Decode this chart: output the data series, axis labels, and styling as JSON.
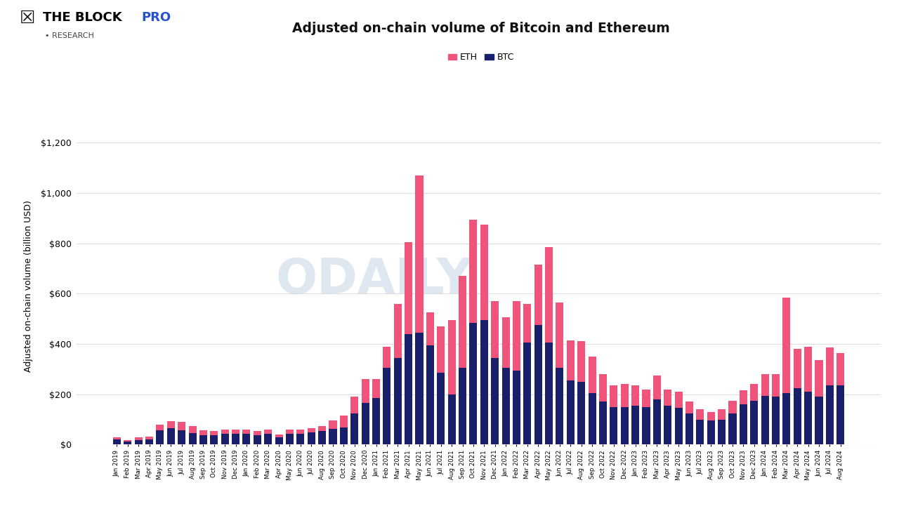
{
  "title": "Adjusted on-chain volume of Bitcoin and Ethereum",
  "ylabel": "Adjusted on-chain volume (billion USD)",
  "eth_color": "#F0547A",
  "btc_color": "#1A1F6B",
  "background_color": "#FFFFFF",
  "grid_color": "#DDDDDD",
  "ylim": [
    0,
    1260
  ],
  "yticks": [
    0,
    200,
    400,
    600,
    800,
    1000,
    1200
  ],
  "categories": [
    "Jan 2019",
    "Feb 2019",
    "Mar 2019",
    "Apr 2019",
    "May 2019",
    "Jun 2019",
    "Jul 2019",
    "Aug 2019",
    "Sep 2019",
    "Oct 2019",
    "Nov 2019",
    "Dec 2019",
    "Jan 2020",
    "Feb 2020",
    "Mar 2020",
    "Apr 2020",
    "May 2020",
    "Jun 2020",
    "Jul 2020",
    "Aug 2020",
    "Sep 2020",
    "Oct 2020",
    "Nov 2020",
    "Dec 2020",
    "Jan 2021",
    "Feb 2021",
    "Mar 2021",
    "Apr 2021",
    "May 2021",
    "Jun 2021",
    "Jul 2021",
    "Aug 2021",
    "Sep 2021",
    "Oct 2021",
    "Nov 2021",
    "Dec 2021",
    "Jan 2022",
    "Feb 2022",
    "Mar 2022",
    "Apr 2022",
    "May 2022",
    "Jun 2022",
    "Jul 2022",
    "Aug 2022",
    "Sep 2022",
    "Oct 2022",
    "Nov 2022",
    "Dec 2022",
    "Jan 2023",
    "Feb 2023",
    "Mar 2023",
    "Apr 2023",
    "May 2023",
    "Jun 2023",
    "Jul 2023",
    "Aug 2023",
    "Sep 2023",
    "Oct 2023",
    "Nov 2023",
    "Dec 2023",
    "Jan 2024",
    "Feb 2024",
    "Mar 2024",
    "Apr 2024",
    "May 2024",
    "Jun 2024",
    "Jul 2024",
    "Aug 2024"
  ],
  "btc_values": [
    20,
    12,
    18,
    20,
    58,
    65,
    58,
    45,
    38,
    38,
    43,
    43,
    43,
    38,
    43,
    28,
    43,
    43,
    48,
    53,
    63,
    68,
    125,
    165,
    185,
    305,
    345,
    440,
    445,
    395,
    285,
    200,
    305,
    485,
    495,
    345,
    305,
    295,
    405,
    475,
    405,
    305,
    255,
    250,
    205,
    170,
    150,
    150,
    155,
    150,
    180,
    155,
    145,
    125,
    100,
    95,
    100,
    125,
    160,
    175,
    195,
    190,
    205,
    225,
    210,
    190,
    235,
    235
  ],
  "eth_values": [
    10,
    7,
    10,
    12,
    22,
    28,
    33,
    28,
    18,
    16,
    16,
    16,
    18,
    16,
    18,
    13,
    16,
    16,
    16,
    20,
    32,
    47,
    65,
    95,
    75,
    85,
    215,
    365,
    625,
    130,
    185,
    295,
    365,
    410,
    380,
    225,
    200,
    275,
    155,
    240,
    380,
    260,
    160,
    160,
    145,
    110,
    85,
    90,
    80,
    70,
    95,
    65,
    65,
    45,
    40,
    35,
    40,
    50,
    55,
    65,
    85,
    90,
    380,
    155,
    180,
    145,
    150,
    130
  ],
  "logo_text1": "THE BLOCK ",
  "logo_text2": "PRO",
  "logo_research": "• RESEARCH",
  "logo_color1": "#000000",
  "logo_color2": "#2255CC",
  "watermark": "ODAILY",
  "watermark_color": "#B0C4DE",
  "watermark_alpha": 0.4
}
